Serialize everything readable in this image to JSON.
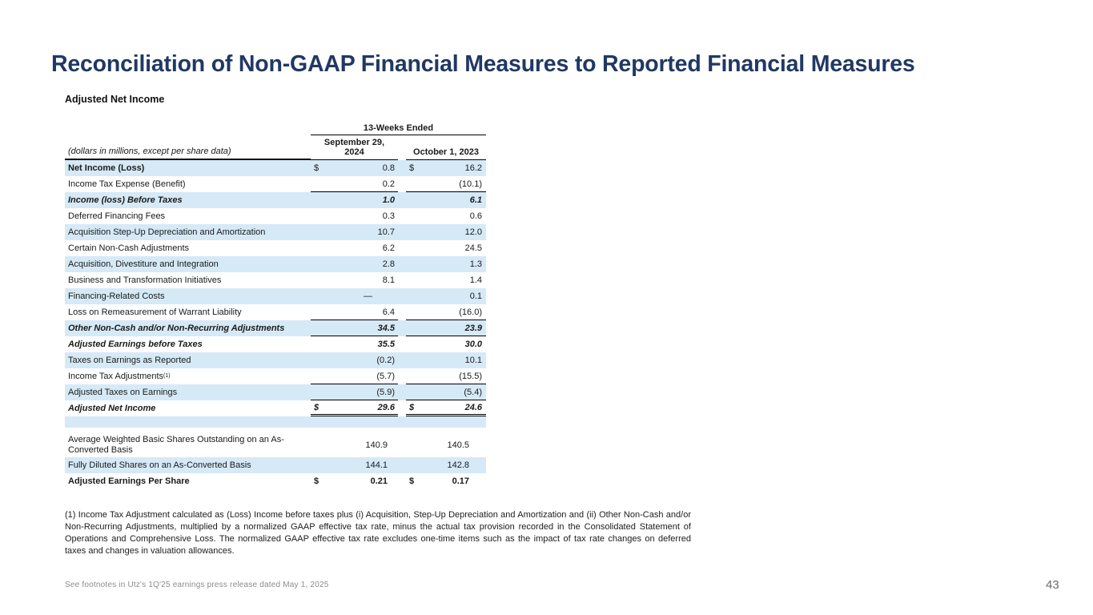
{
  "slide": {
    "title": "Reconciliation of Non-GAAP Financial Measures to Reported Financial Measures",
    "table_title": "Adjusted Net Income",
    "footer_note": "See footnotes in Utz's 1Q'25 earnings press release dated May 1, 2025",
    "page_number": "43"
  },
  "colors": {
    "title_navy": "#203864",
    "row_shade_blue": "#D6E9F7",
    "footer_gray": "#8C8C8C"
  },
  "table": {
    "col_group_header": "13-Weeks Ended",
    "row_label_header": "(dollars in millions, except per share data)",
    "col_headers": [
      "September 29,\n2024",
      "October 1, 2023"
    ],
    "rows": [
      {
        "label": "Net Income (Loss)",
        "d1": "$",
        "v1": "0.8",
        "d2": "$",
        "v2": "16.2",
        "shade": true,
        "style": "bold-label"
      },
      {
        "label": "Income Tax Expense (Benefit)",
        "v1": "0.2",
        "v2": "(10.1)",
        "border": true
      },
      {
        "label": "Income (loss) Before Taxes",
        "v1": "1.0",
        "v2": "6.1",
        "shade": true,
        "style": "bolditalic"
      },
      {
        "label": "Deferred Financing Fees",
        "v1": "0.3",
        "v2": "0.6"
      },
      {
        "label": "Acquisition Step-Up Depreciation and Amortization",
        "v1": "10.7",
        "v2": "12.0",
        "shade": true
      },
      {
        "label": "Certain Non-Cash Adjustments",
        "v1": "6.2",
        "v2": "24.5"
      },
      {
        "label": "Acquisition, Divestiture and Integration",
        "v1": "2.8",
        "v2": "1.3",
        "shade": true
      },
      {
        "label": "Business and Transformation Initiatives",
        "v1": "8.1",
        "v2": "1.4"
      },
      {
        "label": "Financing-Related Costs",
        "v1": "—",
        "v2": "0.1",
        "shade": true,
        "dash": true
      },
      {
        "label": "Loss on Remeasurement of Warrant Liability",
        "v1": "6.4",
        "v2": "(16.0)",
        "border": true
      },
      {
        "label": "Other Non-Cash and/or Non-Recurring Adjustments",
        "v1": "34.5",
        "v2": "23.9",
        "shade": true,
        "style": "bolditalic",
        "border": true
      },
      {
        "label": "Adjusted Earnings before Taxes",
        "v1": "35.5",
        "v2": "30.0",
        "style": "bolditalic"
      },
      {
        "label": "Taxes on Earnings as Reported",
        "v1": "(0.2)",
        "v2": "10.1",
        "shade": true
      },
      {
        "label": "Income Tax Adjustments",
        "sup": "(1)",
        "v1": "(5.7)",
        "v2": "(15.5)",
        "border": true
      },
      {
        "label": "Adjusted Taxes on Earnings",
        "v1": "(5.9)",
        "v2": "(5.4)",
        "shade": true,
        "border": true
      },
      {
        "label": "Adjusted Net Income",
        "d1": "$",
        "v1": "29.6",
        "d2": "$",
        "v2": "24.6",
        "style": "bolditalic",
        "dborder": true
      },
      {
        "spacer": true,
        "shade": true
      },
      {
        "label": "Average Weighted Basic Shares Outstanding on an As-Converted Basis",
        "v1": "140.9",
        "v2": "140.5",
        "tall": true,
        "inset": true
      },
      {
        "label": "Fully Diluted Shares on an As-Converted Basis",
        "v1": "144.1",
        "v2": "142.8",
        "shade": true,
        "inset": true
      },
      {
        "label": "Adjusted Earnings Per Share",
        "d1": "$",
        "v1": "0.21",
        "d2": "$",
        "v2": "0.17",
        "style": "bold",
        "inset": true
      }
    ]
  },
  "footnote": "(1) Income Tax Adjustment calculated as (Loss) Income before taxes plus (i) Acquisition, Step-Up Depreciation and Amortization and (ii) Other Non-Cash and/or Non-Recurring Adjustments, multiplied by a normalized GAAP effective tax rate, minus the actual tax provision recorded in the Consolidated Statement of Operations and Comprehensive Loss. The normalized GAAP effective tax rate excludes one-time items such as the impact of tax rate changes on deferred taxes and changes in valuation allowances."
}
